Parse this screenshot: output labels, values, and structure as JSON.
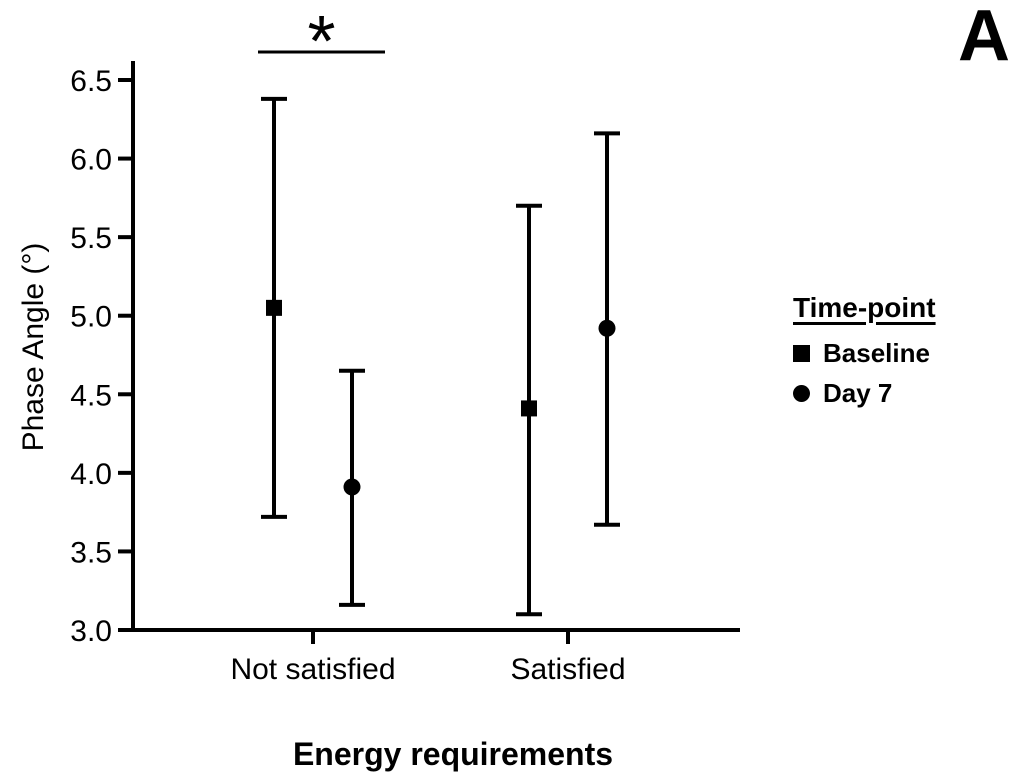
{
  "panel_label": "A",
  "colors": {
    "foreground": "#000000",
    "background": "#ffffff"
  },
  "legend": {
    "title": "Time-point",
    "items": [
      {
        "label": "Baseline",
        "marker": "square-icon"
      },
      {
        "label": "Day 7",
        "marker": "circle-icon"
      }
    ]
  },
  "chart_data": {
    "type": "scatter",
    "title": "",
    "xlabel": "Energy requirements",
    "ylabel": "Phase Angle (°)",
    "categories": [
      "Not satisfied",
      "Satisfied"
    ],
    "ylim": [
      3.0,
      6.5
    ],
    "yticks": [
      3.0,
      3.5,
      4.0,
      4.5,
      5.0,
      5.5,
      6.0,
      6.5
    ],
    "grid": false,
    "legend_position": "right",
    "series": [
      {
        "name": "Baseline",
        "marker": "square",
        "points": [
          {
            "category": "Not satisfied",
            "mean": 5.05,
            "lower": 3.72,
            "upper": 6.38
          },
          {
            "category": "Satisfied",
            "mean": 4.41,
            "lower": 3.1,
            "upper": 5.7
          }
        ]
      },
      {
        "name": "Day 7",
        "marker": "circle",
        "points": [
          {
            "category": "Not satisfied",
            "mean": 3.91,
            "lower": 3.16,
            "upper": 4.65
          },
          {
            "category": "Satisfied",
            "mean": 4.92,
            "lower": 3.67,
            "upper": 6.16
          }
        ]
      }
    ],
    "annotations": [
      {
        "type": "significance-bracket",
        "text": "*",
        "category": "Not satisfied",
        "spans": [
          "Baseline",
          "Day 7"
        ]
      }
    ]
  }
}
